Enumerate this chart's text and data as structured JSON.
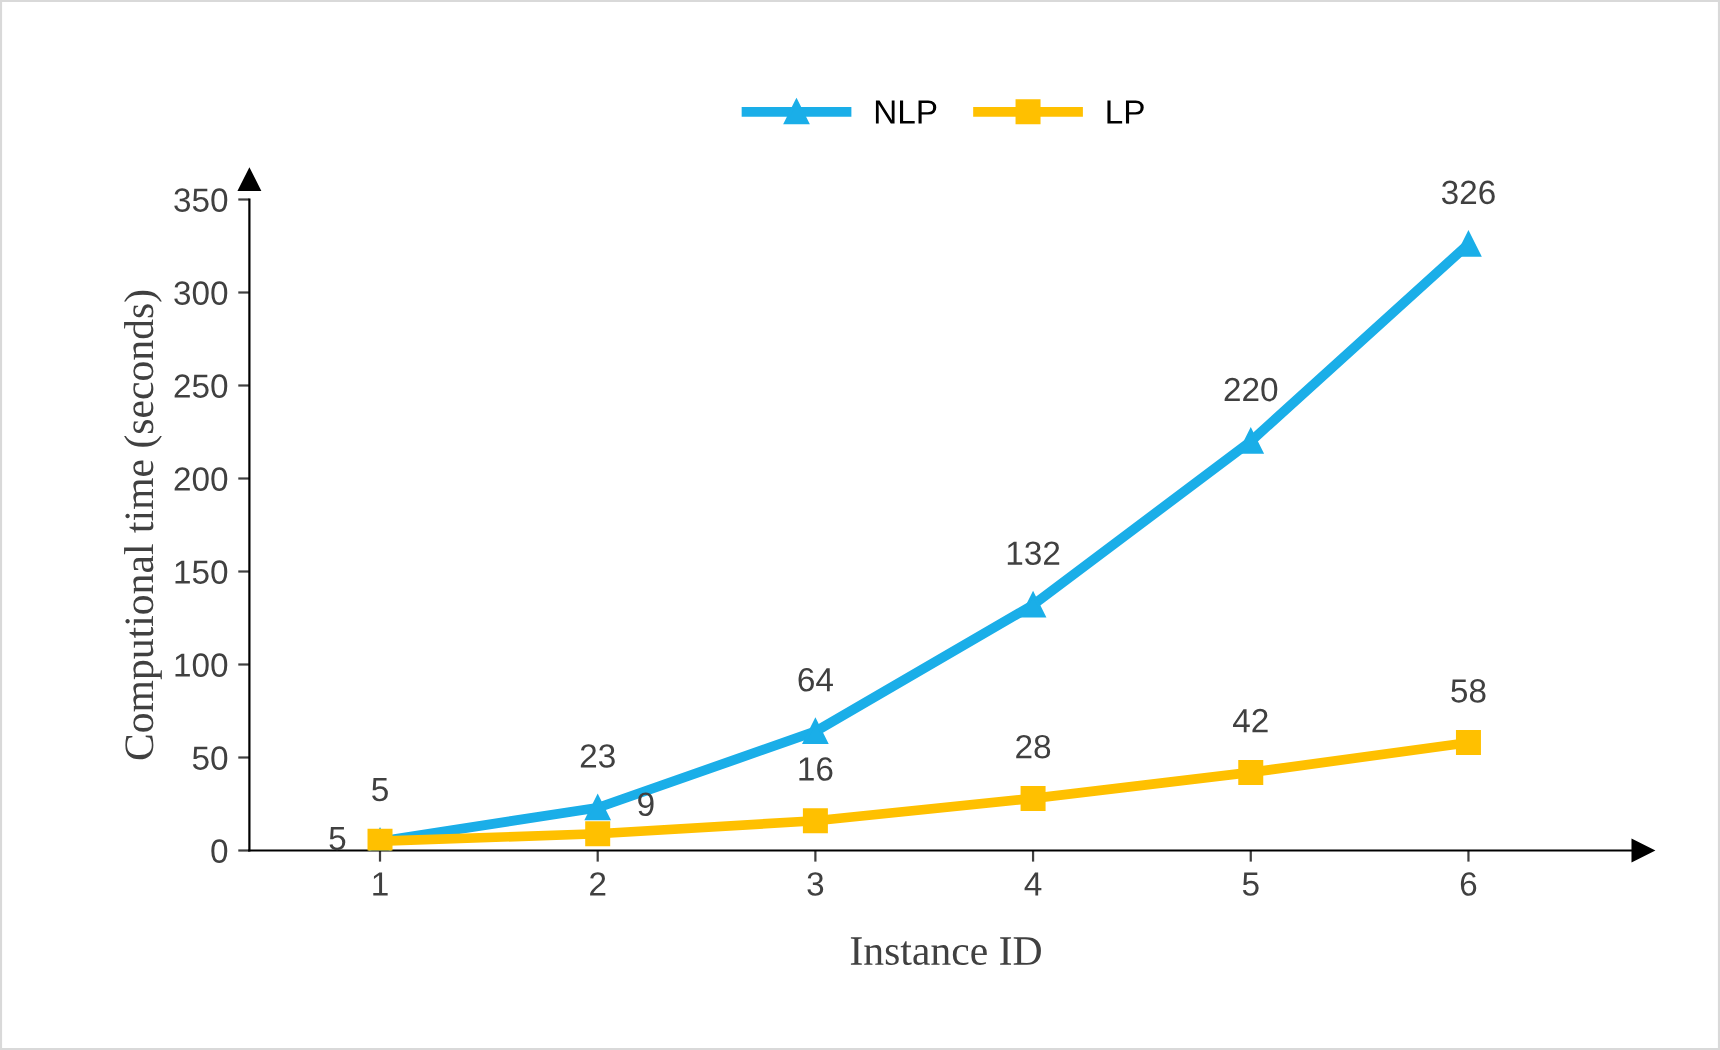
{
  "chart_data": {
    "type": "line",
    "xlabel": "Instance ID",
    "ylabel": "Computional time (seconds)",
    "categories": [
      "1",
      "2",
      "3",
      "4",
      "5",
      "6"
    ],
    "series": [
      {
        "name": "NLP",
        "color": "#1aaee8",
        "marker": "triangle",
        "values": [
          5,
          23,
          64,
          132,
          220,
          326
        ]
      },
      {
        "name": "LP",
        "color": "#ffc000",
        "marker": "square",
        "values": [
          5,
          9,
          16,
          28,
          42,
          58
        ]
      }
    ],
    "ylim": [
      0,
      350
    ],
    "yticks": [
      0,
      50,
      100,
      150,
      200,
      250,
      300,
      350
    ],
    "grid": false,
    "legend": "top",
    "data_labels": true,
    "line_style": "solid"
  }
}
